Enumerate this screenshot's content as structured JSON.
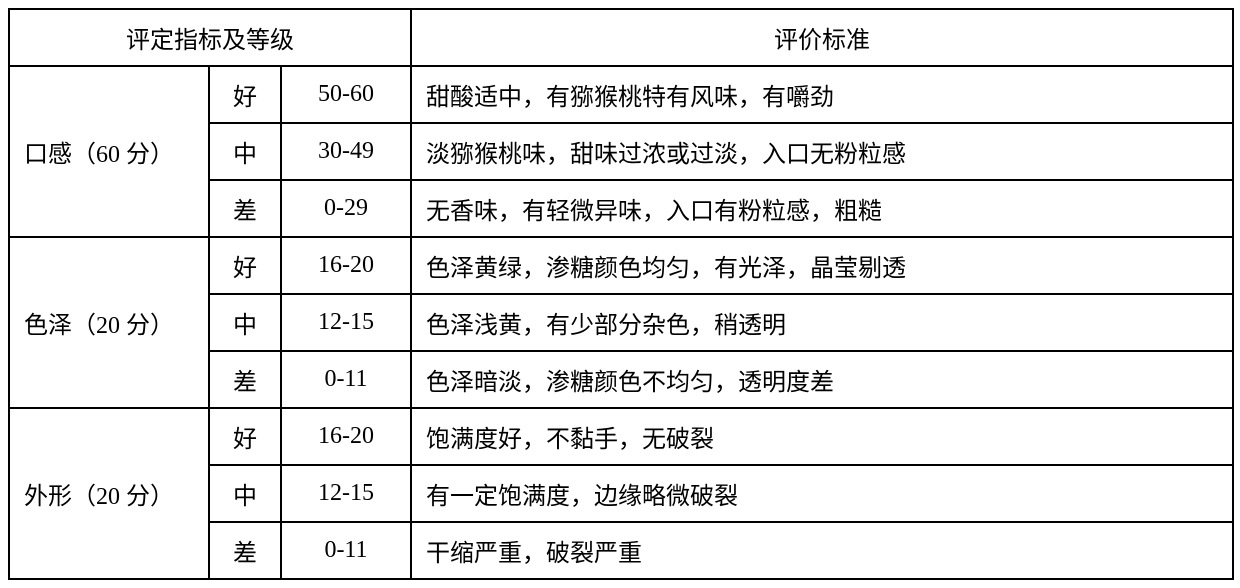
{
  "table": {
    "headers": {
      "left": "评定指标及等级",
      "right": "评价标准"
    },
    "categories": [
      {
        "name": "口感（60 分）",
        "rows": [
          {
            "grade": "好",
            "score": "50-60",
            "desc": "甜酸适中，有猕猴桃特有风味，有嚼劲"
          },
          {
            "grade": "中",
            "score": "30-49",
            "desc": "淡猕猴桃味，甜味过浓或过淡，入口无粉粒感"
          },
          {
            "grade": "差",
            "score": "0-29",
            "desc": "无香味，有轻微异味，入口有粉粒感，粗糙"
          }
        ]
      },
      {
        "name": "色泽（20 分）",
        "rows": [
          {
            "grade": "好",
            "score": "16-20",
            "desc": "色泽黄绿，渗糖颜色均匀，有光泽，晶莹剔透"
          },
          {
            "grade": "中",
            "score": "12-15",
            "desc": "色泽浅黄，有少部分杂色，稍透明"
          },
          {
            "grade": "差",
            "score": "0-11",
            "desc": "色泽暗淡，渗糖颜色不均匀，透明度差"
          }
        ]
      },
      {
        "name": "外形（20 分）",
        "rows": [
          {
            "grade": "好",
            "score": "16-20",
            "desc": "饱满度好，不黏手，无破裂"
          },
          {
            "grade": "中",
            "score": "12-15",
            "desc": "有一定饱满度，边缘略微破裂"
          },
          {
            "grade": "差",
            "score": "0-11",
            "desc": "干缩严重，破裂严重"
          }
        ]
      }
    ]
  },
  "style": {
    "border_color": "#000000",
    "background_color": "#ffffff",
    "font_family": "SimSun",
    "font_size": 24,
    "border_width": 2
  }
}
